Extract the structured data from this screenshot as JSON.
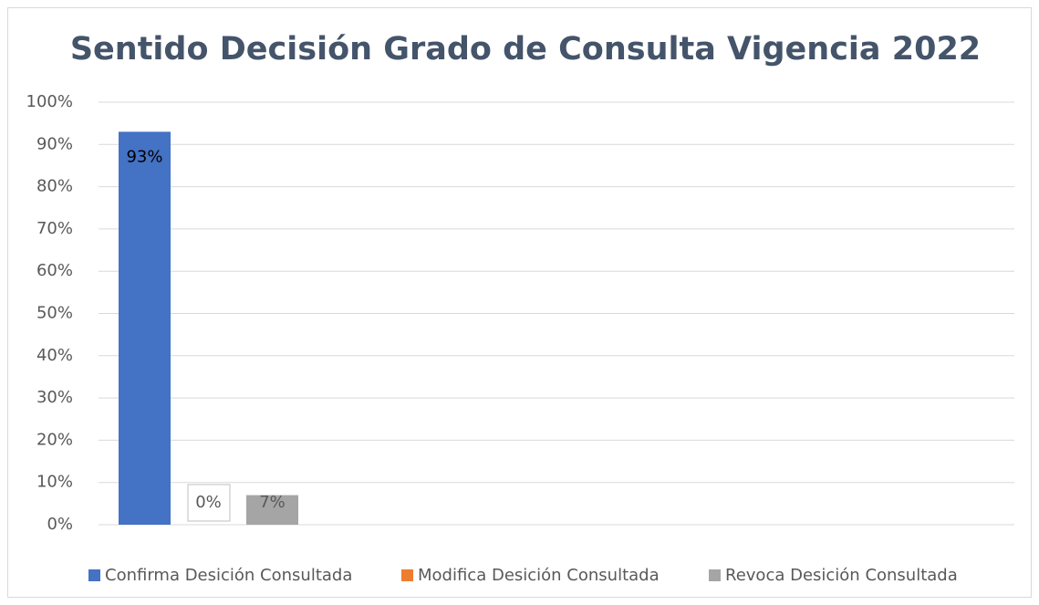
{
  "chart_data": {
    "type": "bar",
    "title": "Sentido Decisión Grado de Consulta Vigencia 2022",
    "categories": [
      null
    ],
    "series": [
      {
        "name": "Confirma Desición Consultada",
        "color": "#4472c4",
        "values": [
          93
        ],
        "value_labels": [
          "93%"
        ]
      },
      {
        "name": "Modifica Desición Consultada",
        "color": "#ed7d31",
        "values": [
          0
        ],
        "value_labels": [
          "0%"
        ]
      },
      {
        "name": "Revoca Desición Consultada",
        "color": "#a5a5a5",
        "values": [
          7
        ],
        "value_labels": [
          "7%"
        ]
      }
    ],
    "ylim": [
      0,
      100
    ],
    "yticks": [
      {
        "value": 0,
        "label": "0%"
      },
      {
        "value": 10,
        "label": "10%"
      },
      {
        "value": 20,
        "label": "20%"
      },
      {
        "value": 30,
        "label": "30%"
      },
      {
        "value": 40,
        "label": "40%"
      },
      {
        "value": 50,
        "label": "50%"
      },
      {
        "value": 60,
        "label": "60%"
      },
      {
        "value": 70,
        "label": "70%"
      },
      {
        "value": 80,
        "label": "80%"
      },
      {
        "value": 90,
        "label": "90%"
      },
      {
        "value": 100,
        "label": "100%"
      }
    ],
    "grid": true,
    "legend": "bottom"
  }
}
